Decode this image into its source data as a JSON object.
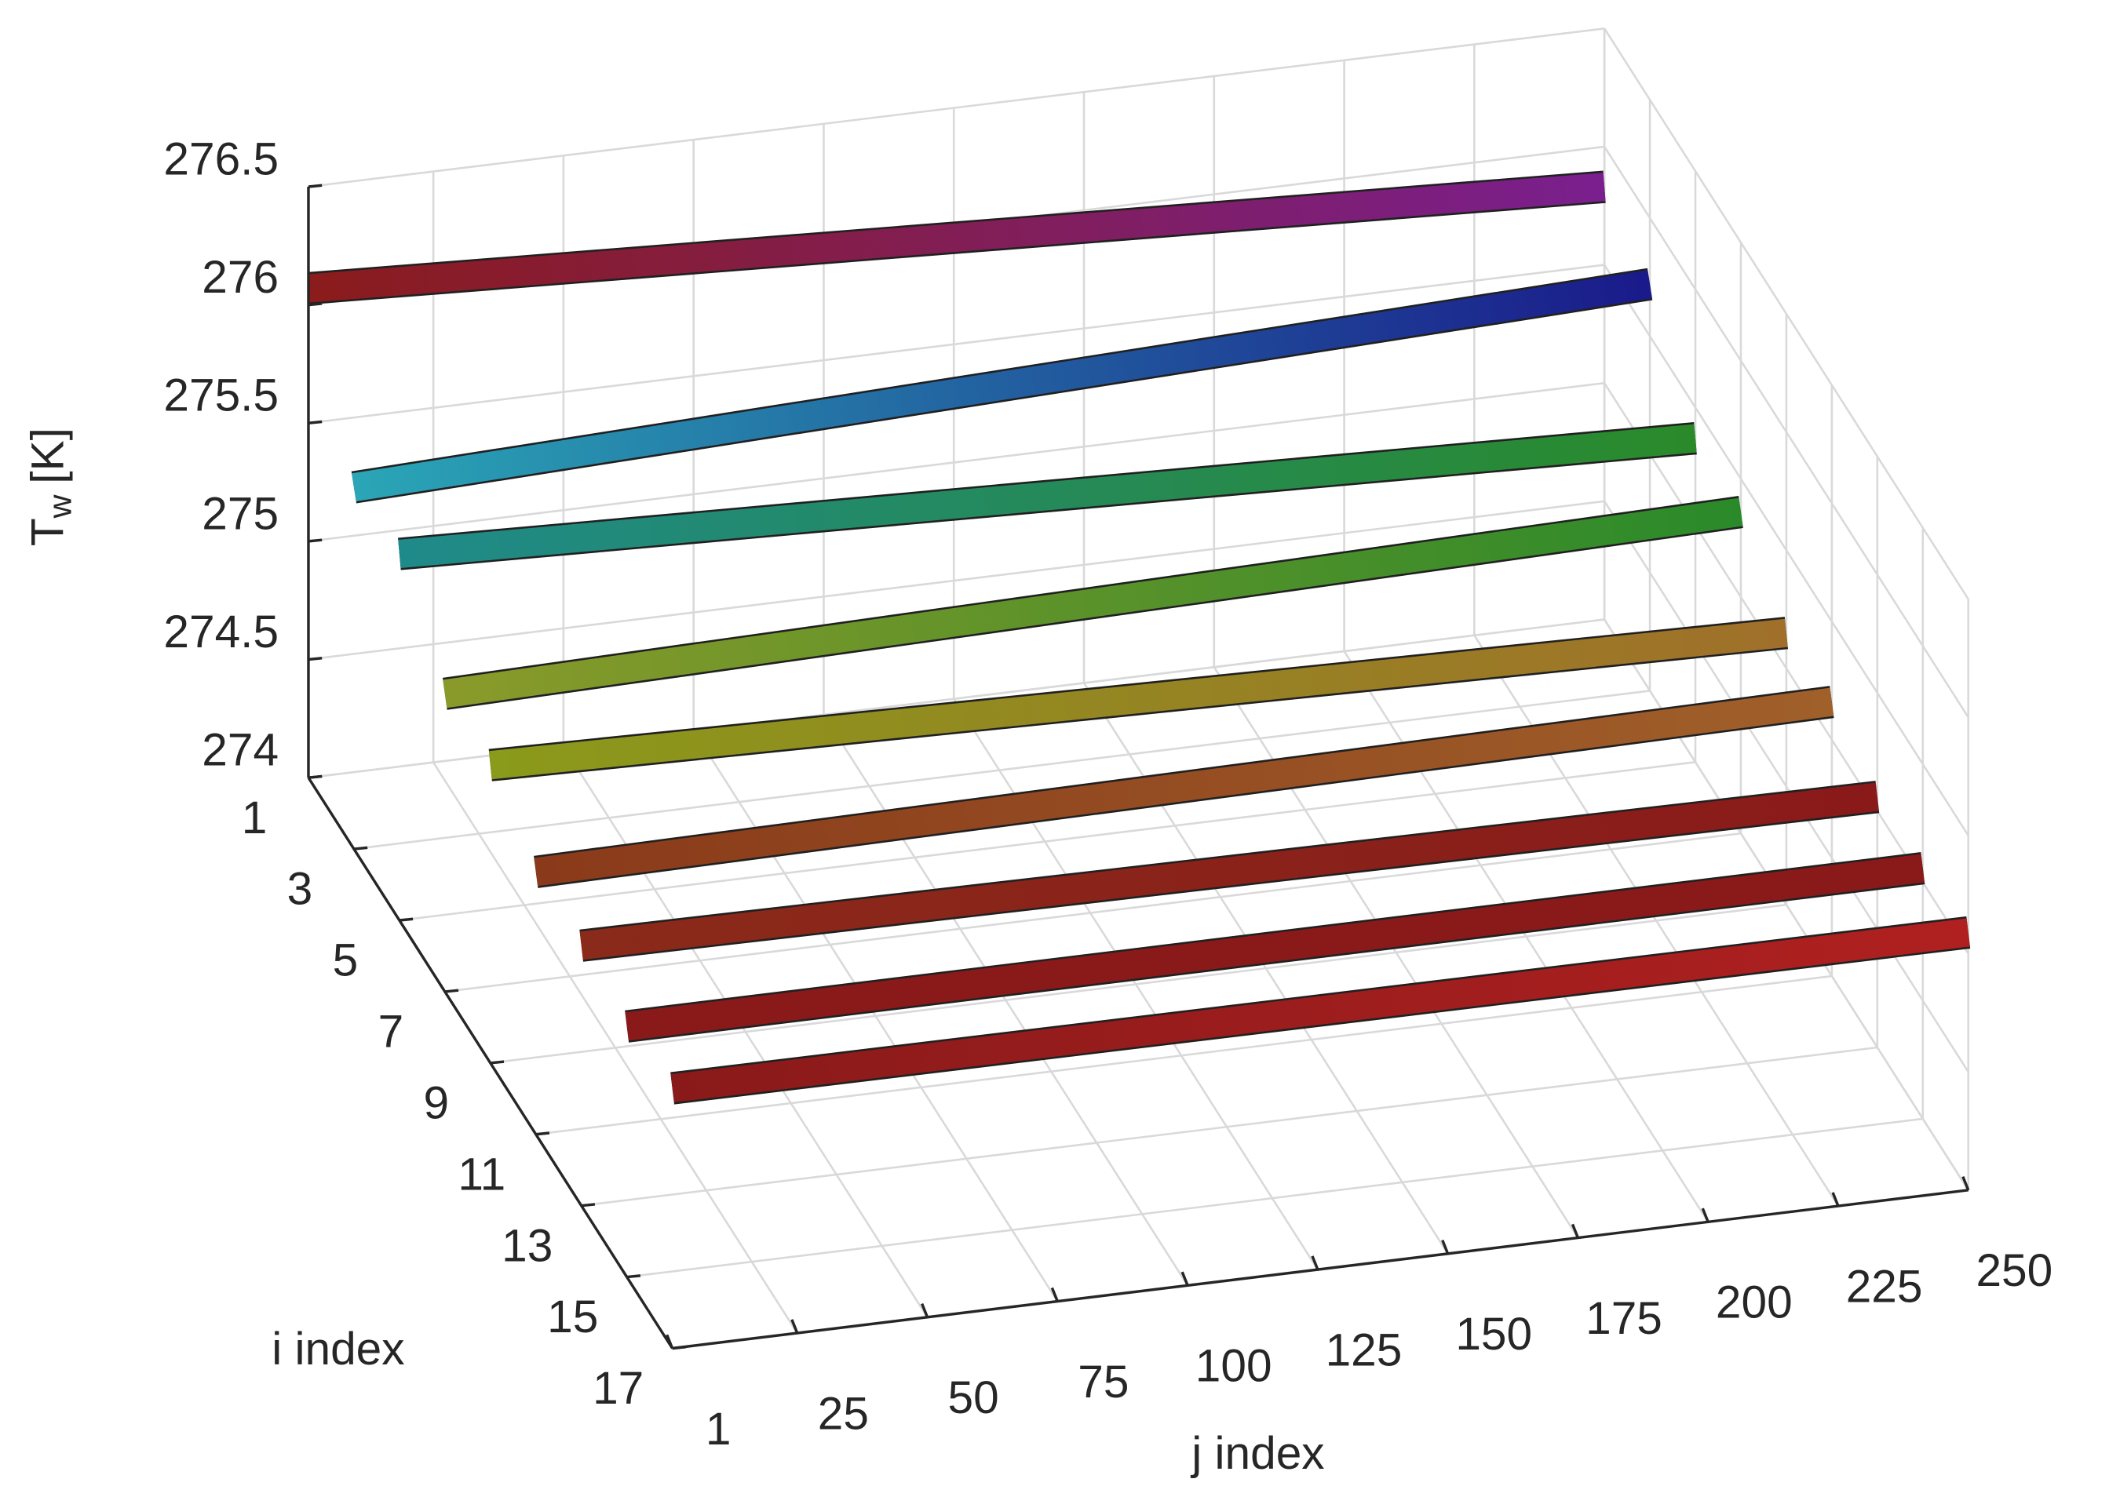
{
  "chart_data": {
    "type": "ribbon3d",
    "zlabel": "T",
    "zlabel_subscript": "w",
    "zlabel_unit": "[K]",
    "ilabel": "i index",
    "jlabel": "j index",
    "ilim": [
      1,
      17
    ],
    "iticks": [
      1,
      3,
      5,
      7,
      9,
      11,
      13,
      15,
      17
    ],
    "jlim": [
      1,
      250
    ],
    "jticks": [
      1,
      25,
      50,
      75,
      100,
      125,
      150,
      175,
      200,
      225,
      250
    ],
    "zlim": [
      274,
      276.5
    ],
    "zticks": [
      274,
      274.5,
      275,
      275.5,
      276,
      276.5
    ],
    "grid": true,
    "x": [
      1,
      250
    ],
    "series": [
      {
        "i": 1,
        "colors": [
          "#8a1c1c",
          "#7a1f8e"
        ],
        "values": [
          276.07,
          275.83
        ]
      },
      {
        "i": 3,
        "colors": [
          "#2aa6b6",
          "#1a1a8a"
        ],
        "values": [
          275.53,
          275.72
        ]
      },
      {
        "i": 5,
        "colors": [
          "#1f8a8a",
          "#2a8a2a"
        ],
        "values": [
          275.55,
          275.37
        ]
      },
      {
        "i": 7,
        "colors": [
          "#8a9a2a",
          "#2a8a2a"
        ],
        "values": [
          275.26,
          275.36
        ]
      },
      {
        "i": 9,
        "colors": [
          "#8a9a1a",
          "#a0702a"
        ],
        "values": [
          275.26,
          275.15
        ]
      },
      {
        "i": 11,
        "colors": [
          "#8a3a1a",
          "#a0602a"
        ],
        "values": [
          275.11,
          275.16
        ]
      },
      {
        "i": 13,
        "colors": [
          "#8a2a1a",
          "#8a1a1a"
        ],
        "values": [
          275.1,
          275.06
        ]
      },
      {
        "i": 15,
        "colors": [
          "#8a1a1a",
          "#8a1a1a"
        ],
        "values": [
          275.06,
          275.06
        ]
      },
      {
        "i": 17,
        "colors": [
          "#8a1a1a",
          "#b02020"
        ],
        "values": [
          275.1,
          275.09
        ]
      }
    ]
  }
}
